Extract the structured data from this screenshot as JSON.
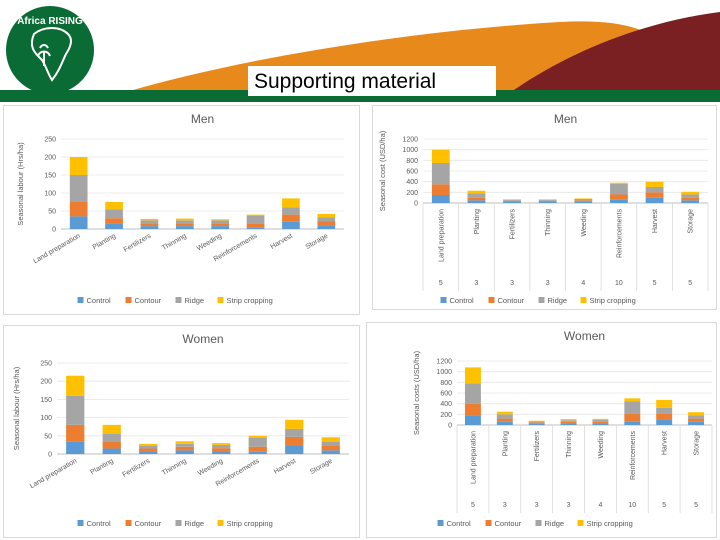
{
  "slide": {
    "title": "Supporting material",
    "logo_text": "Africa RISING",
    "colors": {
      "green": "#0b6b35",
      "orange": "#e8891c",
      "maroon": "#7a1f22"
    }
  },
  "chart_data": [
    {
      "id": "men-labour",
      "type": "bar",
      "stacked": true,
      "title": "Men",
      "ylabel": "Seasonal labour (Hrs/ha)",
      "ylim": [
        0,
        250
      ],
      "yticks": [
        0,
        50,
        100,
        150,
        200,
        250
      ],
      "categories": [
        "Land preparation",
        "Planting",
        "Fertilizers",
        "Thinning",
        "Weeding",
        "Reinforcements",
        "Harvest",
        "Storage"
      ],
      "series": [
        {
          "name": "Control",
          "color": "#5b9bd5",
          "values": [
            35,
            15,
            8,
            8,
            8,
            5,
            20,
            10
          ]
        },
        {
          "name": "Contour",
          "color": "#ed7d31",
          "values": [
            40,
            15,
            8,
            8,
            8,
            10,
            20,
            12
          ]
        },
        {
          "name": "Ridge",
          "color": "#a5a5a5",
          "values": [
            75,
            25,
            8,
            8,
            8,
            23,
            20,
            10
          ]
        },
        {
          "name": "Strip cropping",
          "color": "#ffc000",
          "values": [
            50,
            20,
            4,
            5,
            3,
            2,
            25,
            10
          ]
        }
      ],
      "legend": "bottom"
    },
    {
      "id": "men-cost",
      "type": "bar",
      "stacked": true,
      "title": "Men",
      "ylabel": "Seasonal cost (USD/ha)",
      "ylim": [
        0,
        1200
      ],
      "yticks": [
        0,
        200,
        400,
        600,
        800,
        1000,
        1200
      ],
      "categories": [
        "Land preparation",
        "Planting",
        "Fertilizers",
        "Thinning",
        "Weeding",
        "Reinforcements",
        "Harvest",
        "Storage"
      ],
      "counts": [
        "5",
        "3",
        "3",
        "3",
        "4",
        "10",
        "5",
        "5"
      ],
      "series": [
        {
          "name": "Control",
          "color": "#5b9bd5",
          "values": [
            150,
            50,
            20,
            20,
            25,
            60,
            100,
            50
          ]
        },
        {
          "name": "Contour",
          "color": "#ed7d31",
          "values": [
            200,
            50,
            20,
            20,
            25,
            100,
            100,
            50
          ]
        },
        {
          "name": "Ridge",
          "color": "#a5a5a5",
          "values": [
            400,
            80,
            20,
            20,
            25,
            200,
            100,
            60
          ]
        },
        {
          "name": "Strip cropping",
          "color": "#ffc000",
          "values": [
            250,
            50,
            10,
            10,
            10,
            20,
            100,
            50
          ]
        }
      ],
      "legend": "bottom"
    },
    {
      "id": "women-labour",
      "type": "bar",
      "stacked": true,
      "title": "Women",
      "ylabel": "Seasonal labour (Hrs/ha)",
      "ylim": [
        0,
        250
      ],
      "yticks": [
        0,
        50,
        100,
        150,
        200,
        250
      ],
      "categories": [
        "Land preparation",
        "Planting",
        "Fertilizers",
        "Thinning",
        "Weeding",
        "Reinforcements",
        "Harvest",
        "Storage"
      ],
      "series": [
        {
          "name": "Control",
          "color": "#5b9bd5",
          "values": [
            35,
            15,
            7,
            10,
            8,
            6,
            22,
            10
          ]
        },
        {
          "name": "Contour",
          "color": "#ed7d31",
          "values": [
            45,
            18,
            8,
            10,
            8,
            14,
            25,
            12
          ]
        },
        {
          "name": "Ridge",
          "color": "#a5a5a5",
          "values": [
            80,
            22,
            8,
            8,
            9,
            25,
            22,
            12
          ]
        },
        {
          "name": "Strip cropping",
          "color": "#ffc000",
          "values": [
            55,
            25,
            5,
            7,
            5,
            5,
            25,
            12
          ]
        }
      ],
      "legend": "bottom"
    },
    {
      "id": "women-cost",
      "type": "bar",
      "stacked": true,
      "title": "Women",
      "ylabel": "Seasonal costs (USD/ha)",
      "ylim": [
        0,
        1200
      ],
      "yticks": [
        0,
        200,
        400,
        600,
        800,
        1000,
        1200
      ],
      "categories": [
        "Land preparation",
        "Planting",
        "Fertilizers",
        "Thinning",
        "Weeding",
        "Reinforcements",
        "Harvest",
        "Storage"
      ],
      "counts": [
        "5",
        "3",
        "3",
        "3",
        "4",
        "10",
        "5",
        "5"
      ],
      "series": [
        {
          "name": "Control",
          "color": "#5b9bd5",
          "values": [
            180,
            60,
            25,
            30,
            30,
            60,
            110,
            60
          ]
        },
        {
          "name": "Contour",
          "color": "#ed7d31",
          "values": [
            220,
            60,
            25,
            30,
            30,
            160,
            110,
            60
          ]
        },
        {
          "name": "Ridge",
          "color": "#a5a5a5",
          "values": [
            380,
            80,
            20,
            30,
            35,
            220,
            100,
            60
          ]
        },
        {
          "name": "Strip cropping",
          "color": "#ffc000",
          "values": [
            300,
            50,
            10,
            20,
            20,
            60,
            150,
            60
          ]
        }
      ],
      "legend": "bottom"
    }
  ]
}
